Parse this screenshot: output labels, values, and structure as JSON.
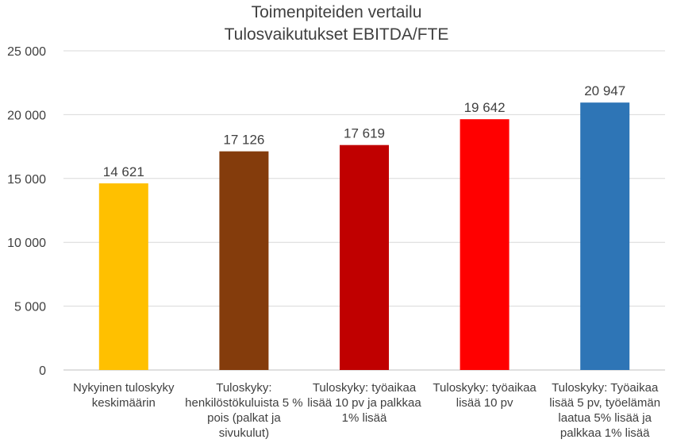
{
  "chart_data": {
    "type": "bar",
    "title": "Toimenpiteiden vertailu",
    "subtitle": "Tulosvaikutukset EBITDA/FTE",
    "ylim": [
      0,
      25000
    ],
    "yticks": [
      "0",
      "5 000",
      "10 000",
      "15 000",
      "20 000",
      "25 000"
    ],
    "grid": true,
    "categories": [
      [
        "Nykyinen tuloskyky",
        "keskimäärin"
      ],
      [
        "Tuloskyky:",
        "henkilöstökuluista 5 %",
        "pois (palkat ja",
        "sivukulut)"
      ],
      [
        "Tuloskyky: työaikaa",
        "lisää 10 pv ja palkkaa",
        "1% lisää"
      ],
      [
        "Tuloskyky: työaikaa",
        "lisää 10 pv"
      ],
      [
        "Tuloskyky: Työaikaa",
        "lisää 5 pv, työelämän",
        "laatua 5% lisää ja",
        "palkkaa 1% lisää"
      ]
    ],
    "values": [
      14621,
      17126,
      17619,
      19642,
      20947
    ],
    "value_labels": [
      "14 621",
      "17 126",
      "17 619",
      "19 642",
      "20 947"
    ],
    "colors": [
      "#FFC000",
      "#843C0C",
      "#C00000",
      "#FF0000",
      "#2E75B6"
    ]
  }
}
